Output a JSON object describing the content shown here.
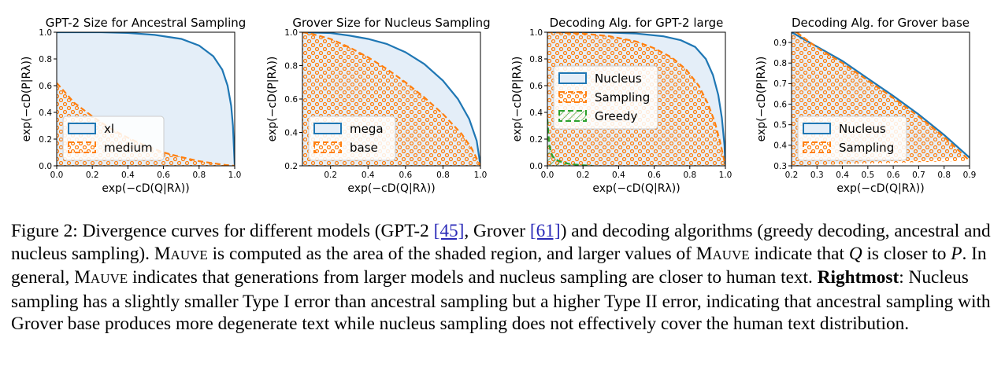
{
  "chart_data": [
    {
      "type": "area",
      "title": "GPT-2 Size for Ancestral Sampling",
      "xlabel": "exp(−cD(Q|Rλ))",
      "ylabel": "exp(−cD(P|Rλ))",
      "xlim": [
        0.0,
        1.0
      ],
      "ylim": [
        0.0,
        1.0
      ],
      "xticks": [
        "0.0",
        "0.2",
        "0.4",
        "0.6",
        "0.8",
        "1.0"
      ],
      "yticks": [
        "0.0",
        "0.2",
        "0.4",
        "0.6",
        "0.8",
        "1.0"
      ],
      "grid": false,
      "legend_position": "lower-center",
      "series": [
        {
          "name": "xl",
          "style": "solid",
          "color": "#1f77b4",
          "fill": "#e4eef8",
          "x": [
            0.0,
            0.25,
            0.4,
            0.55,
            0.7,
            0.8,
            0.88,
            0.93,
            0.96,
            0.98,
            0.99,
            0.995,
            1.0
          ],
          "y": [
            1.0,
            1.0,
            0.995,
            0.98,
            0.95,
            0.9,
            0.82,
            0.72,
            0.6,
            0.45,
            0.3,
            0.15,
            0.0
          ]
        },
        {
          "name": "medium",
          "style": "dashed",
          "color": "#ff7f0e",
          "fill": "hatch",
          "x": [
            0.0,
            0.1,
            0.2,
            0.3,
            0.4,
            0.5,
            0.6,
            0.7,
            0.8,
            0.9,
            0.95,
            1.0
          ],
          "y": [
            0.62,
            0.47,
            0.37,
            0.28,
            0.21,
            0.15,
            0.1,
            0.065,
            0.035,
            0.015,
            0.006,
            0.0
          ]
        }
      ]
    },
    {
      "type": "area",
      "title": "Grover Size for Nucleus Sampling",
      "xlabel": "exp(−cD(Q|Rλ))",
      "ylabel": "exp(−cD(P|Rλ))",
      "xlim": [
        0.05,
        1.0
      ],
      "ylim": [
        0.2,
        1.0
      ],
      "xticks": [
        "0.2",
        "0.4",
        "0.6",
        "0.8",
        "1.0"
      ],
      "yticks": [
        "0.2",
        "0.4",
        "0.6",
        "0.8",
        "1.0"
      ],
      "grid": false,
      "legend_position": "lower-left",
      "series": [
        {
          "name": "mega",
          "style": "solid",
          "color": "#1f77b4",
          "fill": "#e4eef8",
          "x": [
            0.05,
            0.2,
            0.3,
            0.4,
            0.5,
            0.6,
            0.7,
            0.8,
            0.88,
            0.94,
            0.98,
            1.0
          ],
          "y": [
            1.0,
            0.995,
            0.98,
            0.96,
            0.93,
            0.88,
            0.81,
            0.71,
            0.6,
            0.48,
            0.35,
            0.2
          ]
        },
        {
          "name": "base",
          "style": "dashed",
          "color": "#ff7f0e",
          "fill": "hatch",
          "x": [
            0.05,
            0.1,
            0.2,
            0.3,
            0.4,
            0.5,
            0.6,
            0.7,
            0.8,
            0.9,
            0.95,
            1.0
          ],
          "y": [
            1.0,
            0.99,
            0.96,
            0.91,
            0.85,
            0.78,
            0.7,
            0.61,
            0.51,
            0.39,
            0.31,
            0.2
          ]
        }
      ]
    },
    {
      "type": "area",
      "title": "Decoding Alg. for GPT-2 large",
      "xlabel": "exp(−cD(Q|Rλ))",
      "ylabel": "exp(−cD(P|Rλ))",
      "xlim": [
        0.0,
        1.0
      ],
      "ylim": [
        0.0,
        1.0
      ],
      "xticks": [
        "0.0",
        "0.2",
        "0.4",
        "0.6",
        "0.8",
        "1.0"
      ],
      "yticks": [
        "0.0",
        "0.2",
        "0.4",
        "0.6",
        "0.8",
        "1.0"
      ],
      "grid": false,
      "legend_position": "center-left",
      "series": [
        {
          "name": "Nucleus",
          "style": "solid",
          "color": "#1f77b4",
          "fill": "#e4eef8",
          "x": [
            0.0,
            0.3,
            0.5,
            0.65,
            0.75,
            0.83,
            0.89,
            0.93,
            0.96,
            0.98,
            0.995,
            1.0
          ],
          "y": [
            1.0,
            1.0,
            0.99,
            0.97,
            0.94,
            0.89,
            0.8,
            0.68,
            0.53,
            0.36,
            0.15,
            0.0
          ]
        },
        {
          "name": "Sampling",
          "style": "dashed",
          "color": "#ff7f0e",
          "fill": "hatch",
          "x": [
            0.0,
            0.2,
            0.35,
            0.5,
            0.6,
            0.7,
            0.78,
            0.85,
            0.9,
            0.94,
            0.97,
            1.0
          ],
          "y": [
            1.0,
            0.99,
            0.97,
            0.93,
            0.88,
            0.81,
            0.72,
            0.6,
            0.47,
            0.33,
            0.18,
            0.0
          ]
        },
        {
          "name": "Greedy",
          "style": "dashed",
          "color": "#2ca02c",
          "fill": "hatch",
          "x": [
            0.0,
            0.01,
            0.02,
            0.03,
            0.05,
            0.08,
            0.12,
            0.18,
            0.25
          ],
          "y": [
            0.35,
            0.16,
            0.1,
            0.07,
            0.045,
            0.028,
            0.015,
            0.006,
            0.0
          ]
        }
      ]
    },
    {
      "type": "area",
      "title": "Decoding Alg. for Grover base",
      "xlabel": "exp(−cD(Q|Rλ))",
      "ylabel": "exp(−cD(P|Rλ))",
      "xlim": [
        0.2,
        0.9
      ],
      "ylim": [
        0.3,
        0.95
      ],
      "xticks": [
        "0.2",
        "0.3",
        "0.4",
        "0.5",
        "0.6",
        "0.7",
        "0.8",
        "0.9"
      ],
      "yticks": [
        "0.3",
        "0.4",
        "0.5",
        "0.6",
        "0.7",
        "0.8",
        "0.9"
      ],
      "grid": false,
      "legend_position": "lower-left",
      "series": [
        {
          "name": "Nucleus",
          "style": "solid",
          "color": "#1f77b4",
          "fill": "#e4eef8",
          "x": [
            0.2,
            0.3,
            0.4,
            0.5,
            0.6,
            0.7,
            0.8,
            0.9
          ],
          "y": [
            0.95,
            0.88,
            0.81,
            0.725,
            0.64,
            0.55,
            0.45,
            0.34
          ]
        },
        {
          "name": "Sampling",
          "style": "dashed",
          "color": "#ff7f0e",
          "fill": "hatch",
          "x": [
            0.22,
            0.3,
            0.4,
            0.5,
            0.6,
            0.7,
            0.8,
            0.9
          ],
          "y": [
            0.95,
            0.875,
            0.8,
            0.715,
            0.63,
            0.54,
            0.44,
            0.325
          ]
        }
      ]
    }
  ],
  "caption": {
    "label": "Figure 2:",
    "p1": " Divergence curves for different models (GPT-2 ",
    "ref1": "[45]",
    "p2": ", Grover ",
    "ref2": "[61]",
    "p3": ") and decoding algorithms (greedy decoding, ancestral and nucleus sampling). ",
    "mauve_first": "M",
    "mauve_rest": "AUVE",
    "p4": " is computed as the area of the shaded region, and larger values of ",
    "p5": " indicate that ",
    "var_q": "Q",
    "p6": " is closer to ",
    "var_p": "P",
    "p7": ". In general, ",
    "p8": " indicates that generations from larger models and nucleus sampling are closer to human text. ",
    "bold": "Rightmost",
    "p9": ": Nucleus sampling has a slightly smaller Type I error than ancestral sampling but a higher Type II error, indicating that ancestral sampling with Grover base produces more degenerate text while nucleus sampling does not effectively cover the human text distribution."
  }
}
